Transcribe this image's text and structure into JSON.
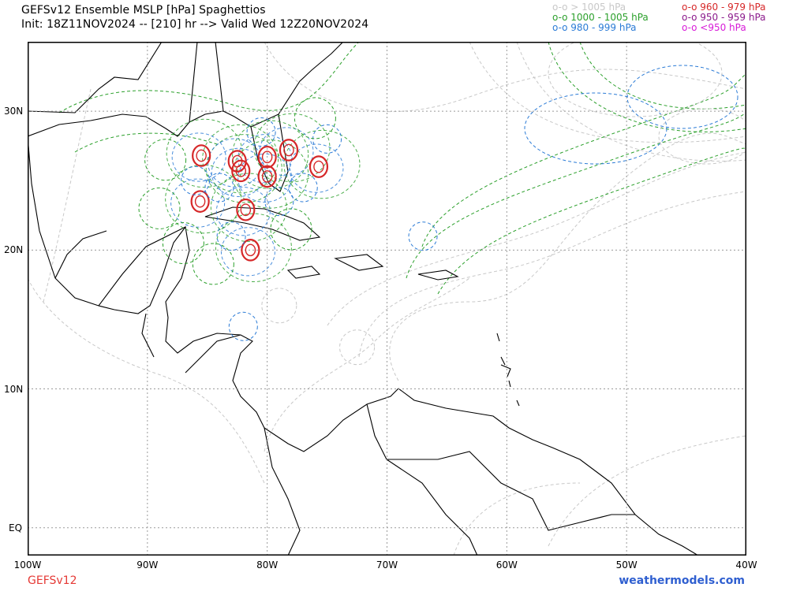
{
  "header": {
    "title": "GEFSv12 Ensemble MSLP [hPa] Spaghettios",
    "subtitle": "Init: 18Z11NOV2024 -- [210] hr --> Valid Wed 12Z20NOV2024"
  },
  "legend": [
    {
      "label": "o-o > 1005 hPa",
      "color": "#c8c8c8"
    },
    {
      "label": "o-o 1000 - 1005 hPa",
      "color": "#2ca02c"
    },
    {
      "label": "o-o 980 - 999 hPa",
      "color": "#2b7bd6"
    },
    {
      "label": "o-o 960 - 979 hPa",
      "color": "#d62728"
    },
    {
      "label": "o-o 950 - 959 hPa",
      "color": "#8b1a8b"
    },
    {
      "label": "o-o <950 hPa",
      "color": "#d81bd8"
    }
  ],
  "map": {
    "x_labels": [
      "100W",
      "90W",
      "80W",
      "70W",
      "60W",
      "50W",
      "40W"
    ],
    "y_labels": [
      "30N",
      "20N",
      "10N",
      "EQ"
    ],
    "lon_range": [
      -100,
      -40
    ],
    "lat_range": [
      -2,
      35
    ],
    "lows": [
      {
        "lon": -85.5,
        "lat": 26.8,
        "band": "960-979"
      },
      {
        "lon": -82.5,
        "lat": 26.4,
        "band": "960-979"
      },
      {
        "lon": -80.0,
        "lat": 26.7,
        "band": "960-979"
      },
      {
        "lon": -78.2,
        "lat": 27.2,
        "band": "960-979"
      },
      {
        "lon": -82.2,
        "lat": 25.7,
        "band": "960-979"
      },
      {
        "lon": -80.0,
        "lat": 25.3,
        "band": "960-979"
      },
      {
        "lon": -75.7,
        "lat": 26.0,
        "band": "960-979"
      },
      {
        "lon": -85.6,
        "lat": 23.5,
        "band": "960-979"
      },
      {
        "lon": -81.8,
        "lat": 22.9,
        "band": "960-979"
      },
      {
        "lon": -81.4,
        "lat": 20.0,
        "band": "960-979"
      },
      {
        "lon": -67.0,
        "lat": 21.0,
        "band": "980-999"
      },
      {
        "lon": -84.0,
        "lat": 24.5,
        "band": "980-999"
      },
      {
        "lon": -86.0,
        "lat": 25.0,
        "band": "980-999"
      },
      {
        "lon": -79.0,
        "lat": 23.5,
        "band": "980-999"
      },
      {
        "lon": -77.0,
        "lat": 24.5,
        "band": "980-999"
      },
      {
        "lon": -82.0,
        "lat": 14.5,
        "band": "980-999"
      },
      {
        "lon": -83.0,
        "lat": 21.0,
        "band": "980-999"
      },
      {
        "lon": -80.5,
        "lat": 28.5,
        "band": "980-999"
      },
      {
        "lon": -75.0,
        "lat": 28.0,
        "band": "980-999"
      },
      {
        "lon": -89.0,
        "lat": 23.0,
        "band": "1000-1005"
      },
      {
        "lon": -87.0,
        "lat": 20.5,
        "band": "1000-1005"
      },
      {
        "lon": -84.5,
        "lat": 19.0,
        "band": "1000-1005"
      },
      {
        "lon": -78.0,
        "lat": 21.5,
        "band": "1000-1005"
      },
      {
        "lon": -88.5,
        "lat": 26.5,
        "band": "1000-1005"
      },
      {
        "lon": -76.0,
        "lat": 29.5,
        "band": "1000-1005"
      },
      {
        "lon": -72.5,
        "lat": 13.0,
        "band": ">1005"
      },
      {
        "lon": -79.0,
        "lat": 16.0,
        "band": ">1005"
      }
    ]
  },
  "footer": {
    "model": "GEFSv12",
    "site": "weathermodels.com",
    "model_color": "#e53935",
    "site_color": "#2f5fd0"
  }
}
